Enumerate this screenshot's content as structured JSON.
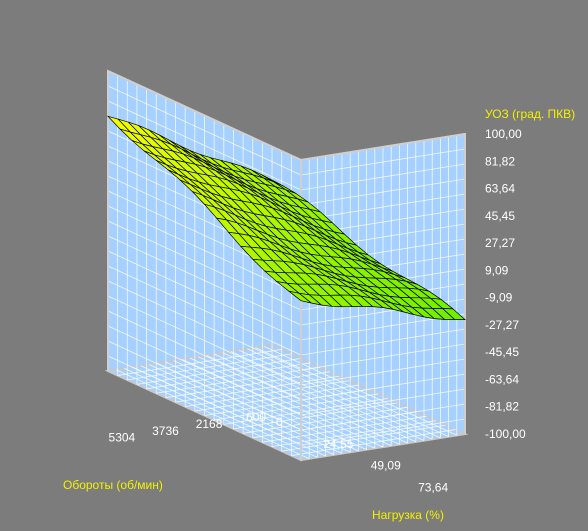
{
  "chart_data": {
    "type": "surface",
    "title": "",
    "z_axis": {
      "label": "УОЗ (град. ПКВ)",
      "ticks": [
        "100,00",
        "81,82",
        "63,64",
        "45,45",
        "27,27",
        "9,09",
        "-9,09",
        "-27,27",
        "-45,45",
        "-63,64",
        "-81,82",
        "-100,00"
      ],
      "range": [
        -100,
        100
      ]
    },
    "load_axis": {
      "label": "Нагрузка (%)",
      "ticks": [
        "0",
        "24,55",
        "49,09",
        "73,64"
      ],
      "range": [
        0,
        100
      ]
    },
    "rpm_axis": {
      "label": "Обороты (об/мин)",
      "ticks": [
        "600",
        "2168",
        "3736",
        "5304"
      ],
      "range": [
        600,
        6500
      ]
    },
    "grid": true,
    "surface": {
      "grid_size": [
        16,
        16
      ],
      "corner_values": {
        "load_0_rpm_600": 10,
        "load_100_rpm_600": -25,
        "load_0_rpm_6500": 72,
        "load_100_rpm_6500": 5
      },
      "colors": {
        "high": "#ffff00",
        "low": "#66ee00"
      }
    }
  }
}
